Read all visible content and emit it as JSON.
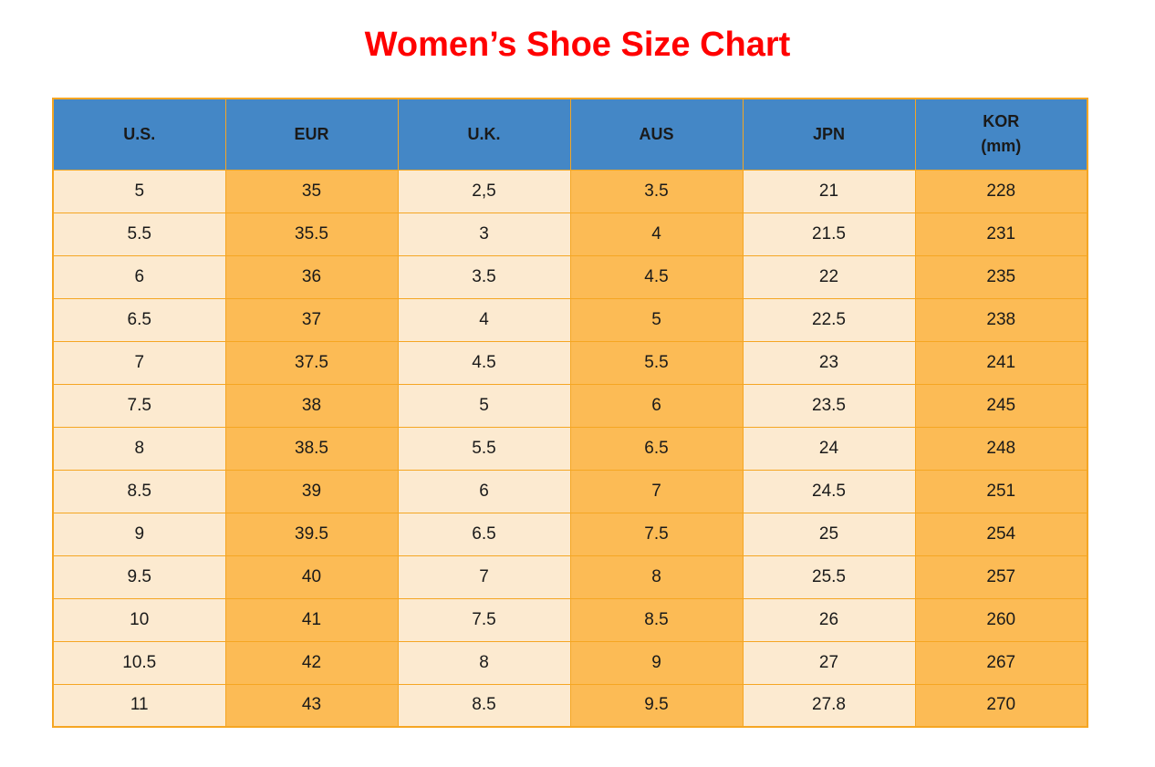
{
  "title": "Women’s Shoe Size Chart",
  "colors": {
    "title_red": "#FF0000",
    "header_blue": "#4487C6",
    "row_cream": "#FCEAD0",
    "row_orange": "#FCBB55",
    "border_orange": "#F5A623",
    "cell_text": "#1a1a1a"
  },
  "chart_data": {
    "type": "table",
    "title": "Women’s Shoe Size Chart",
    "columns": [
      "U.S.",
      "EUR",
      "U.K.",
      "AUS",
      "JPN",
      "KOR\n(mm)"
    ],
    "rows": [
      [
        "5",
        "35",
        "2,5",
        "3.5",
        "21",
        "228"
      ],
      [
        "5.5",
        "35.5",
        "3",
        "4",
        "21.5",
        "231"
      ],
      [
        "6",
        "36",
        "3.5",
        "4.5",
        "22",
        "235"
      ],
      [
        "6.5",
        "37",
        "4",
        "5",
        "22.5",
        "238"
      ],
      [
        "7",
        "37.5",
        "4.5",
        "5.5",
        "23",
        "241"
      ],
      [
        "7.5",
        "38",
        "5",
        "6",
        "23.5",
        "245"
      ],
      [
        "8",
        "38.5",
        "5.5",
        "6.5",
        "24",
        "248"
      ],
      [
        "8.5",
        "39",
        "6",
        "7",
        "24.5",
        "251"
      ],
      [
        "9",
        "39.5",
        "6.5",
        "7.5",
        "25",
        "254"
      ],
      [
        "9.5",
        "40",
        "7",
        "8",
        "25.5",
        "257"
      ],
      [
        "10",
        "41",
        "7.5",
        "8.5",
        "26",
        "260"
      ],
      [
        "10.5",
        "42",
        "8",
        "9",
        "27",
        "267"
      ],
      [
        "11",
        "43",
        "8.5",
        "9.5",
        "27.8",
        "270"
      ]
    ]
  }
}
